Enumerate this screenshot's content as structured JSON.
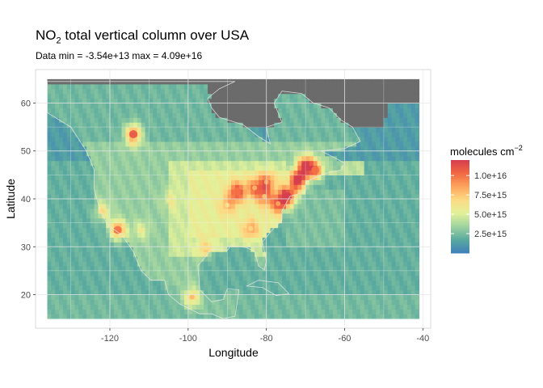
{
  "chart_data": {
    "type": "heatmap",
    "title": "NO₂ total vertical column over USA",
    "title_sub_text": "NO",
    "title_sub_index": "2",
    "title_rest": " total vertical column over USA",
    "subtitle": "Data min = -3.54e+13 max = 4.09e+16",
    "xlabel": "Longitude",
    "ylabel": "Latitude",
    "xlim": [
      -139,
      -38
    ],
    "ylim": [
      13,
      67
    ],
    "xticks": [
      -120,
      -100,
      -80,
      -60,
      -40
    ],
    "yticks": [
      20,
      30,
      40,
      50,
      60
    ],
    "grid": true,
    "data_extent": {
      "lon": [
        -136,
        -41
      ],
      "lat": [
        15,
        64.5
      ]
    },
    "legend": {
      "title": "molecules cm",
      "title_superscript": "−2",
      "placement": "right",
      "range": [
        0,
        1.2e+16
      ],
      "breaks": [
        {
          "value": 2500000000000000.0,
          "label": "2.5e+15"
        },
        {
          "value": 5000000000000000.0,
          "label": "5.0e+15"
        },
        {
          "value": 7500000000000000.0,
          "label": "7.5e+15"
        },
        {
          "value": 1e+16,
          "label": "1.0e+16"
        }
      ],
      "palette": [
        "#3f7fba",
        "#5aaa9f",
        "#9fd3a0",
        "#e2f19a",
        "#fdda84",
        "#fca55d",
        "#f26842",
        "#d53e4f"
      ]
    },
    "no_data_color": "#6b6b6b",
    "hotspots": [
      {
        "lon": -114,
        "lat": 53.5,
        "value": 1.1e+16
      },
      {
        "lon": -118,
        "lat": 33.5,
        "value": 1e+16
      },
      {
        "lon": -122,
        "lat": 37.5,
        "value": 7000000000000000.0
      },
      {
        "lon": -87.5,
        "lat": 41.5,
        "value": 1e+16
      },
      {
        "lon": -74.5,
        "lat": 40.5,
        "value": 1.2e+16
      },
      {
        "lon": -72,
        "lat": 44,
        "value": 1.2e+16
      },
      {
        "lon": -70,
        "lat": 47,
        "value": 1.2e+16
      },
      {
        "lon": -67.5,
        "lat": 46,
        "value": 1e+16
      },
      {
        "lon": -80,
        "lat": 43.5,
        "value": 8500000000000000.0
      },
      {
        "lon": -84,
        "lat": 33.8,
        "value": 7000000000000000.0
      },
      {
        "lon": -90,
        "lat": 38.7,
        "value": 6500000000000000.0
      },
      {
        "lon": -95.5,
        "lat": 29.8,
        "value": 6500000000000000.0
      },
      {
        "lon": -112,
        "lat": 33.5,
        "value": 6000000000000000.0
      },
      {
        "lon": -99,
        "lat": 19.5,
        "value": 8000000000000000.0
      },
      {
        "lon": -105,
        "lat": 39.7,
        "value": 5500000000000000.0
      },
      {
        "lon": -83,
        "lat": 42.3,
        "value": 8000000000000000.0
      },
      {
        "lon": -77,
        "lat": 39,
        "value": 8500000000000000.0
      },
      {
        "lon": -80.5,
        "lat": 40.5,
        "value": 7500000000000000.0
      }
    ]
  }
}
